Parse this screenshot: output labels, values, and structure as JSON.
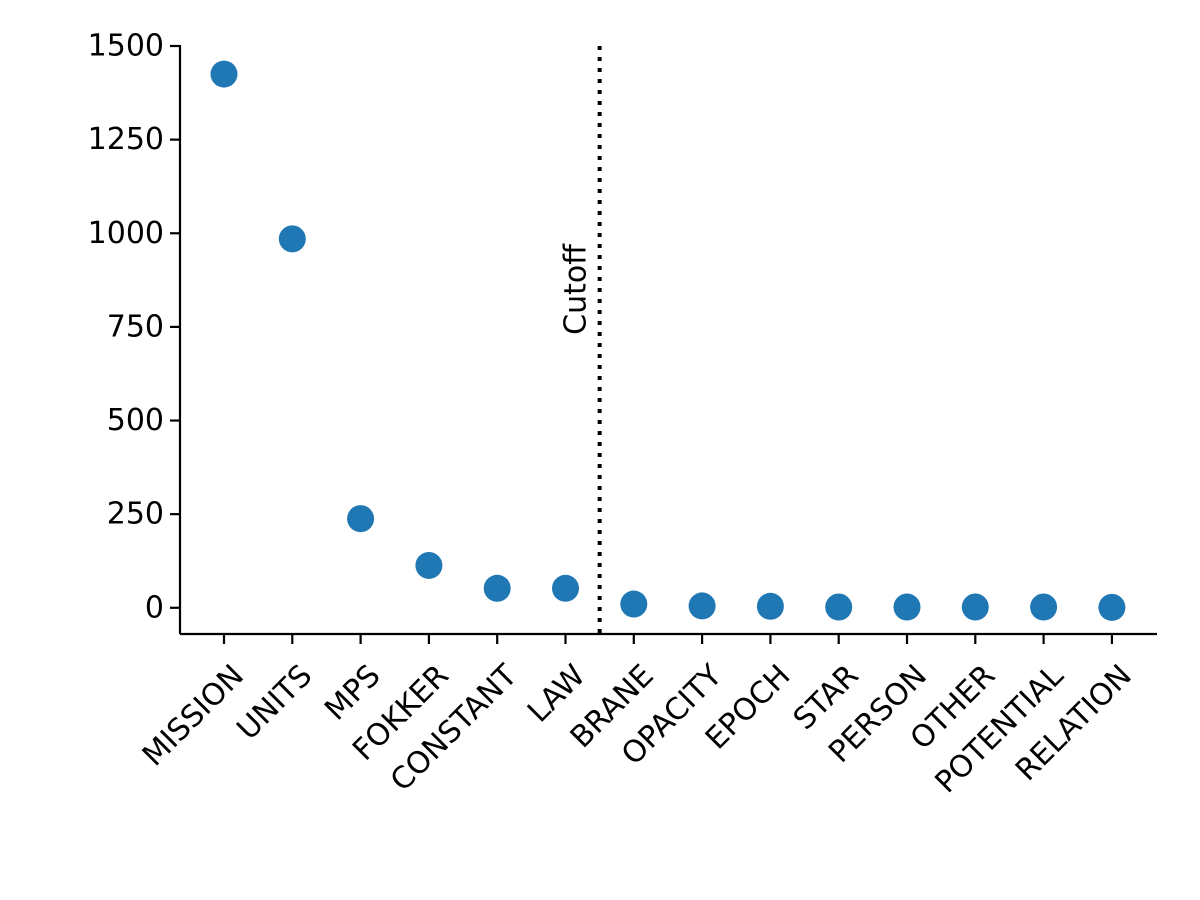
{
  "chart_data": {
    "type": "scatter",
    "categories": [
      "MISSION",
      "UNITS",
      "MPS",
      "FOKKER",
      "CONSTANT",
      "LAW",
      "BRANE",
      "OPACITY",
      "EPOCH",
      "STAR",
      "PERSON",
      "OTHER",
      "POTENTIAL",
      "RELATION"
    ],
    "values": [
      1425,
      985,
      238,
      113,
      52,
      52,
      10,
      5,
      4,
      2,
      2,
      2,
      2,
      1
    ],
    "ylim": [
      -70,
      1500
    ],
    "yticks": [
      0,
      250,
      500,
      750,
      1000,
      1250,
      1500
    ],
    "ytick_labels": [
      "0",
      "250",
      "500",
      "750",
      "1000",
      "1250",
      "1500"
    ],
    "cutoff": {
      "label": "Cutoff",
      "after_category_index": 5,
      "line_style": "dotted"
    },
    "grid": false,
    "colors": {
      "points": "#1f77b4",
      "axes": "#000000",
      "cutoff_line": "#000000"
    }
  }
}
